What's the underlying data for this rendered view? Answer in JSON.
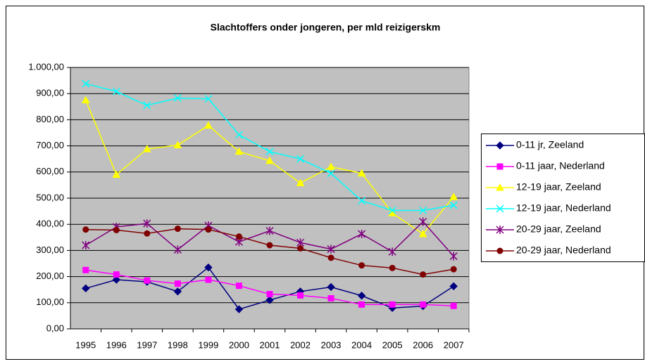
{
  "chart_data": {
    "type": "line",
    "title": "Slachtoffers onder jongeren, per mld reizigerskm",
    "categories": [
      "1995",
      "1996",
      "1997",
      "1998",
      "1999",
      "2000",
      "2001",
      "2002",
      "2003",
      "2004",
      "2005",
      "2006",
      "2007"
    ],
    "ylim": [
      0,
      1000
    ],
    "yticks": [
      {
        "value": 0,
        "label": "0,00"
      },
      {
        "value": 100,
        "label": "100,00"
      },
      {
        "value": 200,
        "label": "200,00"
      },
      {
        "value": 300,
        "label": "300,00"
      },
      {
        "value": 400,
        "label": "400,00"
      },
      {
        "value": 500,
        "label": "500,00"
      },
      {
        "value": 600,
        "label": "600,00"
      },
      {
        "value": 700,
        "label": "700,00"
      },
      {
        "value": 800,
        "label": "800,00"
      },
      {
        "value": 900,
        "label": "900,00"
      },
      {
        "value": 1000,
        "label": "1.000,00"
      }
    ],
    "grid": true,
    "legend": "right",
    "series": [
      {
        "name": "0-11 jr, Zeeland",
        "color": "#000080",
        "marker": "diamond",
        "values": [
          155,
          188,
          180,
          143,
          235,
          75,
          110,
          143,
          160,
          127,
          80,
          87,
          163
        ]
      },
      {
        "name": "0-11 jaar, Nederland",
        "color": "#ff00ff",
        "marker": "square",
        "values": [
          225,
          208,
          185,
          173,
          188,
          165,
          133,
          128,
          117,
          93,
          93,
          93,
          88
        ]
      },
      {
        "name": "12-19 jaar, Zeeland",
        "color": "#ffff00",
        "marker": "triangle",
        "values": [
          875,
          590,
          688,
          703,
          778,
          678,
          643,
          558,
          620,
          595,
          443,
          363,
          505
        ]
      },
      {
        "name": "12-19 jaar, Nederland",
        "color": "#00ffff",
        "marker": "x",
        "values": [
          938,
          908,
          855,
          883,
          880,
          743,
          678,
          650,
          595,
          490,
          453,
          453,
          473
        ]
      },
      {
        "name": "20-29 jaar, Zeeland",
        "color": "#800080",
        "marker": "star",
        "values": [
          320,
          390,
          403,
          303,
          395,
          333,
          375,
          330,
          305,
          363,
          295,
          410,
          278
        ]
      },
      {
        "name": "20-29 jaar, Nederland",
        "color": "#800000",
        "marker": "circle",
        "values": [
          380,
          378,
          365,
          383,
          380,
          353,
          320,
          308,
          272,
          243,
          233,
          208,
          228
        ]
      }
    ]
  }
}
